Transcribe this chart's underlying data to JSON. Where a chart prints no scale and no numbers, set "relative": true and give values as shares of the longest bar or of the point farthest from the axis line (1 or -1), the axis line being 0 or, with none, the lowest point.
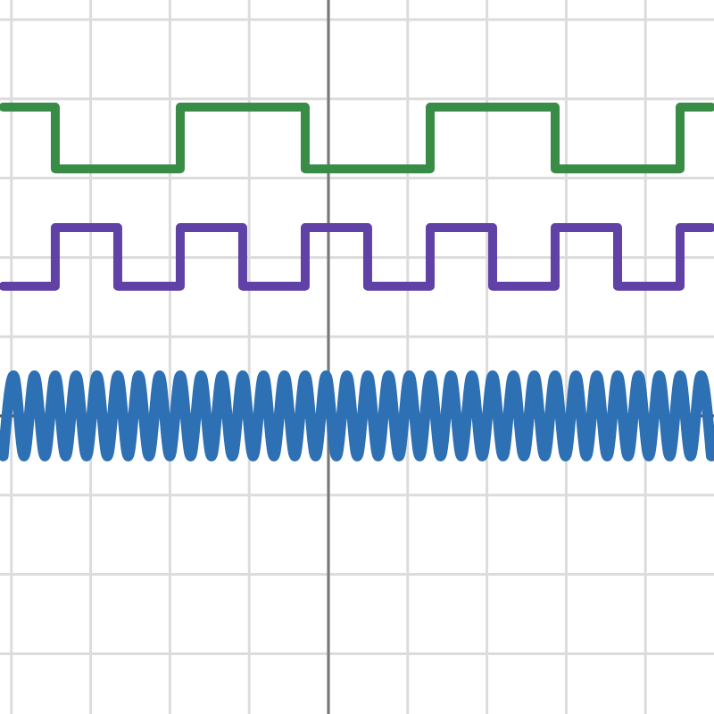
{
  "chart_data": {
    "type": "line",
    "relative": true,
    "grid": true,
    "categories": [
      null,
      null,
      null,
      null,
      null,
      null,
      null,
      null,
      null,
      null,
      null,
      null,
      null,
      null,
      null,
      null,
      null,
      null,
      null,
      null,
      null,
      null,
      null,
      null,
      null,
      null,
      null,
      null,
      null,
      null,
      null,
      null,
      null,
      null,
      null,
      null,
      null,
      null,
      null,
      null,
      null,
      null,
      null,
      null,
      null,
      null,
      null,
      null,
      null,
      null,
      null,
      null,
      null,
      null,
      null,
      null,
      null,
      null,
      null,
      null,
      null,
      null,
      null,
      null,
      null,
      null,
      null,
      null,
      null
    ],
    "series": [
      {
        "type": "step",
        "color": "#388c46",
        "values": [
          1,
          1,
          1,
          1,
          1,
          0.8,
          0.8,
          0.8,
          0.8,
          0.8,
          0.8,
          0.8,
          0.8,
          0.8,
          0.8,
          0.8,
          0.8,
          1,
          1,
          1,
          1,
          1,
          1,
          1,
          1,
          1,
          1,
          1,
          1,
          0.8,
          0.8,
          0.8,
          0.8,
          0.8,
          0.8,
          0.8,
          0.8,
          0.8,
          0.8,
          0.8,
          0.8,
          1,
          1,
          1,
          1,
          1,
          1,
          1,
          1,
          1,
          1,
          1,
          1,
          0.8,
          0.8,
          0.8,
          0.8,
          0.8,
          0.8,
          0.8,
          0.8,
          0.8,
          0.8,
          0.8,
          0.8,
          1,
          1,
          1,
          1
        ]
      },
      {
        "type": "step",
        "color": "#6042a6",
        "values": [
          0.42,
          0.42,
          0.42,
          0.42,
          0.42,
          0.61,
          0.61,
          0.61,
          0.61,
          0.61,
          0.61,
          0.42,
          0.42,
          0.42,
          0.42,
          0.42,
          0.42,
          0.61,
          0.61,
          0.61,
          0.61,
          0.61,
          0.61,
          0.42,
          0.42,
          0.42,
          0.42,
          0.42,
          0.42,
          0.61,
          0.61,
          0.61,
          0.61,
          0.61,
          0.61,
          0.42,
          0.42,
          0.42,
          0.42,
          0.42,
          0.42,
          0.61,
          0.61,
          0.61,
          0.61,
          0.61,
          0.61,
          0.42,
          0.42,
          0.42,
          0.42,
          0.42,
          0.42,
          0.61,
          0.61,
          0.61,
          0.61,
          0.61,
          0.61,
          0.42,
          0.42,
          0.42,
          0.42,
          0.42,
          0.42,
          0.61,
          0.61,
          0.61,
          0.61
        ]
      },
      {
        "color": "#2d70b3",
        "values": [
          -0.13,
          0.13,
          -0.13,
          0.13,
          -0.13,
          0.13,
          -0.13,
          0.13,
          -0.13,
          0.13,
          -0.13,
          0.13,
          -0.13,
          0.13,
          -0.13,
          0.13,
          -0.13,
          0.13,
          -0.13,
          0.13,
          -0.13,
          0.13,
          -0.13,
          0.13,
          -0.13,
          0.13,
          -0.13,
          0.13,
          -0.13,
          0.13,
          -0.13,
          0.13,
          -0.13,
          0.13,
          -0.13,
          0.13,
          -0.13,
          0.13,
          -0.13,
          0.13,
          -0.13,
          0.13,
          -0.13,
          0.13,
          -0.13,
          0.13,
          -0.13,
          0.13,
          -0.13,
          0.13,
          -0.13,
          0.13,
          -0.13,
          0.13,
          -0.13,
          0.13,
          -0.13,
          0.13,
          -0.13,
          0.13,
          -0.13,
          0.13,
          -0.13,
          0.13,
          -0.13,
          0.13,
          -0.13,
          0.13,
          -0.13
        ]
      }
    ]
  }
}
